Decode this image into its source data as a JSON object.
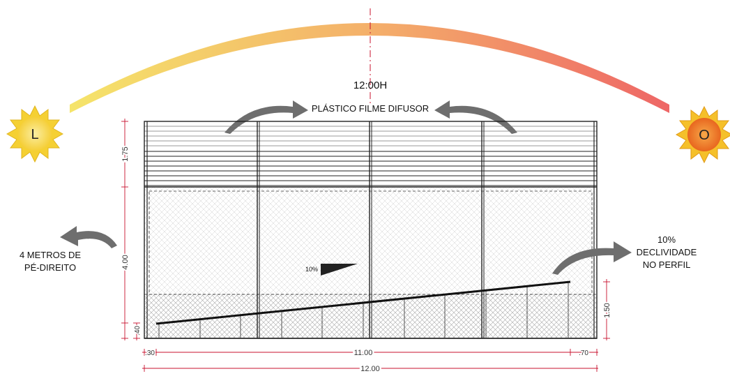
{
  "title_time": "12:00H",
  "sun_east_letter": "L",
  "sun_west_letter": "O",
  "film_label": "PLÁSTICO FILME DIFUSOR",
  "ceiling_note": [
    "4 METROS DE",
    "PÉ-DIREITO"
  ],
  "slope_note": [
    "10%",
    "DECLIVIDADE",
    "NO PERFIL"
  ],
  "slope_marker": "10%",
  "dims": {
    "d_175": "1.75",
    "d_400": "4.00",
    "d_40": ".40",
    "d_150": "1.50",
    "d_30": ".30",
    "d_1100": "11.00",
    "d_70": ".70",
    "d_1200": "12.00"
  },
  "colors": {
    "arc_start": "#f5e46a",
    "arc_mid": "#f4b46a",
    "arc_end": "#ee6a6a",
    "dimension_red": "#c8102e",
    "sun_outer": "#f5d033",
    "sun_inner_east": "#f7e27a",
    "sun_inner_west": "#f08a2c"
  }
}
